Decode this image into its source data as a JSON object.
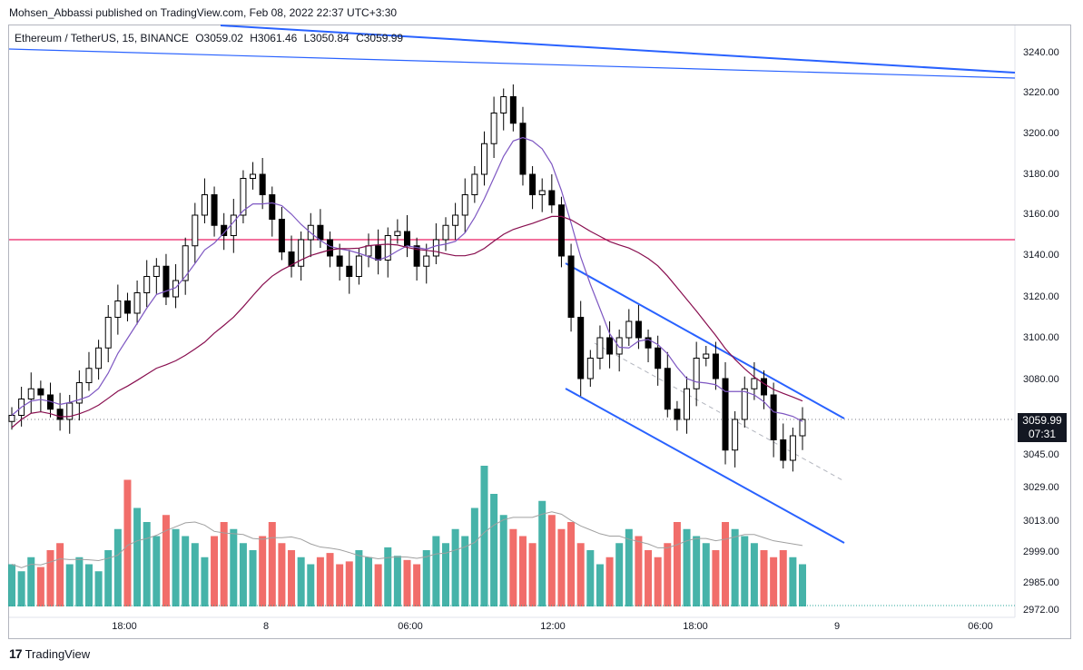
{
  "header": {
    "published": "Mohsen_Abbassi published on TradingView.com, Feb 08, 2022 22:37 UTC+3:30"
  },
  "symbol_bar": {
    "symbol": "Ethereum / TetherUS, 15, BINANCE",
    "open": "O3059.02",
    "high": "H3061.46",
    "low": "L3050.84",
    "close": "C3059.99"
  },
  "price_badge": {
    "price": "3059.99",
    "countdown": "07:31"
  },
  "footer": {
    "brand": "TradingView"
  },
  "colors": {
    "up": "#26a69a",
    "down": "#ef5350",
    "candle_up": "#ffffff",
    "candle_down": "#000000",
    "trendline": "#2962ff",
    "hline": "#e91e63",
    "ma_fast": "#7e57c2",
    "ma_slow": "#880e4f"
  },
  "chart_data": {
    "type": "candlestick",
    "title": "Ethereum / TetherUS, 15, BINANCE",
    "y_ticks": [
      "3240.00",
      "3220.00",
      "3200.00",
      "3180.00",
      "3160.00",
      "3140.00",
      "3120.00",
      "3100.00",
      "3080.00",
      "3045.00",
      "3029.00",
      "3013.00",
      "2999.00",
      "2985.00",
      "2972.00"
    ],
    "x_ticks": [
      "18:00",
      "8",
      "06:00",
      "12:00",
      "18:00",
      "9",
      "06:00"
    ],
    "horizontal_level": 3148,
    "last_price": 3059.99,
    "ylim": [
      2970,
      3250
    ],
    "close_path": [
      3062,
      3070,
      3075,
      3072,
      3065,
      3060,
      3068,
      3078,
      3085,
      3095,
      3110,
      3118,
      3112,
      3122,
      3130,
      3135,
      3120,
      3128,
      3145,
      3160,
      3170,
      3155,
      3150,
      3160,
      3178,
      3180,
      3170,
      3158,
      3142,
      3135,
      3148,
      3155,
      3148,
      3140,
      3135,
      3130,
      3140,
      3145,
      3138,
      3150,
      3152,
      3145,
      3135,
      3140,
      3148,
      3155,
      3160,
      3170,
      3180,
      3195,
      3210,
      3218,
      3205,
      3180,
      3170,
      3172,
      3165,
      3140,
      3110,
      3080,
      3090,
      3100,
      3092,
      3100,
      3108,
      3100,
      3095,
      3085,
      3065,
      3060,
      3075,
      3090,
      3092,
      3080,
      3045,
      3060,
      3075,
      3080,
      3072,
      3050,
      3040,
      3052,
      3060
    ],
    "volume_relative": [
      0.3,
      0.25,
      0.35,
      0.28,
      0.4,
      0.45,
      0.3,
      0.35,
      0.3,
      0.25,
      0.4,
      0.55,
      0.9,
      0.7,
      0.6,
      0.5,
      0.65,
      0.55,
      0.5,
      0.45,
      0.35,
      0.5,
      0.6,
      0.55,
      0.45,
      0.4,
      0.5,
      0.6,
      0.45,
      0.4,
      0.35,
      0.3,
      0.35,
      0.38,
      0.3,
      0.32,
      0.4,
      0.35,
      0.3,
      0.42,
      0.36,
      0.33,
      0.3,
      0.4,
      0.5,
      0.45,
      0.55,
      0.5,
      0.7,
      1.0,
      0.8,
      0.65,
      0.55,
      0.5,
      0.45,
      0.75,
      0.65,
      0.55,
      0.6,
      0.45,
      0.4,
      0.3,
      0.35,
      0.45,
      0.55,
      0.5,
      0.4,
      0.35,
      0.45,
      0.6,
      0.55,
      0.5,
      0.45,
      0.4,
      0.6,
      0.55,
      0.5,
      0.45,
      0.4,
      0.35,
      0.4,
      0.35,
      0.3
    ]
  }
}
